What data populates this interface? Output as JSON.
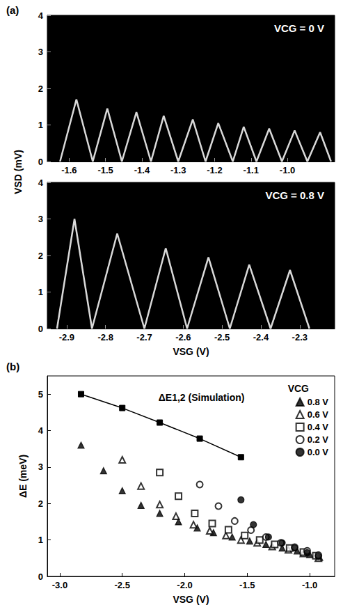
{
  "chart_data": [
    {
      "panel": "(a)",
      "type": "line",
      "title": "VCG = 0 V",
      "ylabel": "VSD (mV)",
      "xlim": [
        -1.66,
        -0.87
      ],
      "xticks": [
        -1.6,
        -1.5,
        -1.4,
        -1.3,
        -1.2,
        -1.1,
        {
          "value": -1,
          "label": "-1.0"
        }
      ],
      "ylim": [
        0,
        4
      ],
      "yticks": [
        0,
        1,
        2,
        3,
        4
      ],
      "grid": false,
      "series": [
        {
          "color": "#d9d9d9",
          "x": [
            -1.625,
            -1.58,
            -1.535,
            -1.495,
            -1.455,
            -1.415,
            -1.375,
            -1.34,
            -1.3,
            -1.26,
            -1.225,
            -1.19,
            -1.15,
            -1.12,
            -1.085,
            -1.05,
            -1.015,
            -0.98,
            -0.945,
            -0.91,
            -0.88
          ],
          "values": [
            0,
            1.7,
            0,
            1.45,
            0,
            1.35,
            0,
            1.25,
            0,
            1.15,
            0,
            1.05,
            0,
            0.95,
            0,
            0.9,
            0,
            0.85,
            0,
            0.8,
            0
          ]
        }
      ]
    },
    {
      "type": "line",
      "title": "VCG = 0.8 V",
      "xlabel": "VSG (V)",
      "xlim": [
        -2.95,
        -2.21
      ],
      "xticks": [
        -2.9,
        -2.8,
        -2.7,
        -2.6,
        -2.5,
        -2.4,
        -2.3
      ],
      "ylim": [
        0,
        4
      ],
      "yticks": [
        0,
        1,
        2,
        3,
        4
      ],
      "grid": false,
      "series": [
        {
          "color": "#d9d9d9",
          "x": [
            -2.925,
            -2.88,
            -2.835,
            -2.77,
            -2.7,
            -2.645,
            -2.59,
            -2.535,
            -2.48,
            -2.43,
            -2.375,
            -2.325,
            -2.275
          ],
          "values": [
            0,
            3.0,
            0,
            2.6,
            0,
            2.2,
            0,
            1.95,
            0,
            1.75,
            0,
            1.6,
            0
          ]
        }
      ]
    },
    {
      "panel": "(b)",
      "type": "scatter",
      "xlabel": "VSG (V)",
      "ylabel": "ΔE (meV)",
      "xlim": [
        -3.1,
        -0.8
      ],
      "xticks": [
        {
          "value": -3,
          "label": "-3.0"
        },
        -2.5,
        {
          "value": -2,
          "label": "-2.0"
        },
        -1.5,
        {
          "value": -1,
          "label": "-1.0"
        }
      ],
      "ylim": [
        0,
        5.5
      ],
      "yticks": [
        0,
        1,
        2,
        3,
        4,
        5
      ],
      "grid": false,
      "legend": "upper right",
      "legend_title": "VCG",
      "series": [
        {
          "name": "ΔE1,2 (Simulation)",
          "type": "line",
          "marker": "square",
          "color": "#000000",
          "x": [
            -2.83,
            -2.5,
            -2.2,
            -1.88,
            -1.55
          ],
          "values": [
            5.0,
            4.62,
            4.22,
            3.78,
            3.27
          ]
        },
        {
          "name": "0.8 V",
          "marker": "triangle",
          "color": "#000000",
          "x": [
            -2.83,
            -2.65,
            -2.5,
            -2.35,
            -2.2,
            -2.05,
            -1.9,
            -1.77,
            -1.62,
            -1.48,
            -1.35,
            -1.22,
            -1.1,
            -1.0,
            -0.92
          ],
          "values": [
            3.6,
            2.9,
            2.35,
            1.95,
            1.73,
            1.5,
            1.33,
            1.2,
            1.08,
            0.97,
            0.88,
            0.78,
            0.7,
            0.6,
            0.52
          ]
        },
        {
          "name": "0.6 V",
          "marker": "open_triangle",
          "color": "#000000",
          "x": [
            -2.5,
            -2.35,
            -2.2,
            -2.07,
            -1.93,
            -1.8,
            -1.67,
            -1.55,
            -1.42,
            -1.3,
            -1.17,
            -1.05,
            -0.93
          ],
          "values": [
            3.2,
            2.48,
            1.97,
            1.65,
            1.42,
            1.25,
            1.12,
            1.0,
            0.92,
            0.82,
            0.73,
            0.63,
            0.5
          ]
        },
        {
          "name": "0.4 V",
          "marker": "open_square",
          "color": "#000000",
          "x": [
            -2.2,
            -2.05,
            -1.92,
            -1.78,
            -1.65,
            -1.52,
            -1.4,
            -1.28,
            -1.16,
            -1.05,
            -0.95
          ],
          "values": [
            2.85,
            2.2,
            1.73,
            1.45,
            1.28,
            1.12,
            1.0,
            0.88,
            0.78,
            0.67,
            0.57
          ]
        },
        {
          "name": "0.2 V",
          "marker": "open_circle",
          "color": "#000000",
          "x": [
            -1.88,
            -1.73,
            -1.6,
            -1.47,
            -1.35,
            -1.23,
            -1.12,
            -1.02,
            -0.93
          ],
          "values": [
            2.52,
            1.93,
            1.52,
            1.27,
            1.08,
            0.92,
            0.8,
            0.7,
            0.58
          ]
        },
        {
          "name": "0.0 V",
          "marker": "circle",
          "color": "#000000",
          "x": [
            -1.55,
            -1.45,
            -1.33,
            -1.22,
            -1.12,
            -1.02,
            -0.93
          ],
          "values": [
            2.1,
            1.42,
            1.08,
            0.92,
            0.78,
            0.65,
            0.55
          ]
        }
      ]
    }
  ]
}
